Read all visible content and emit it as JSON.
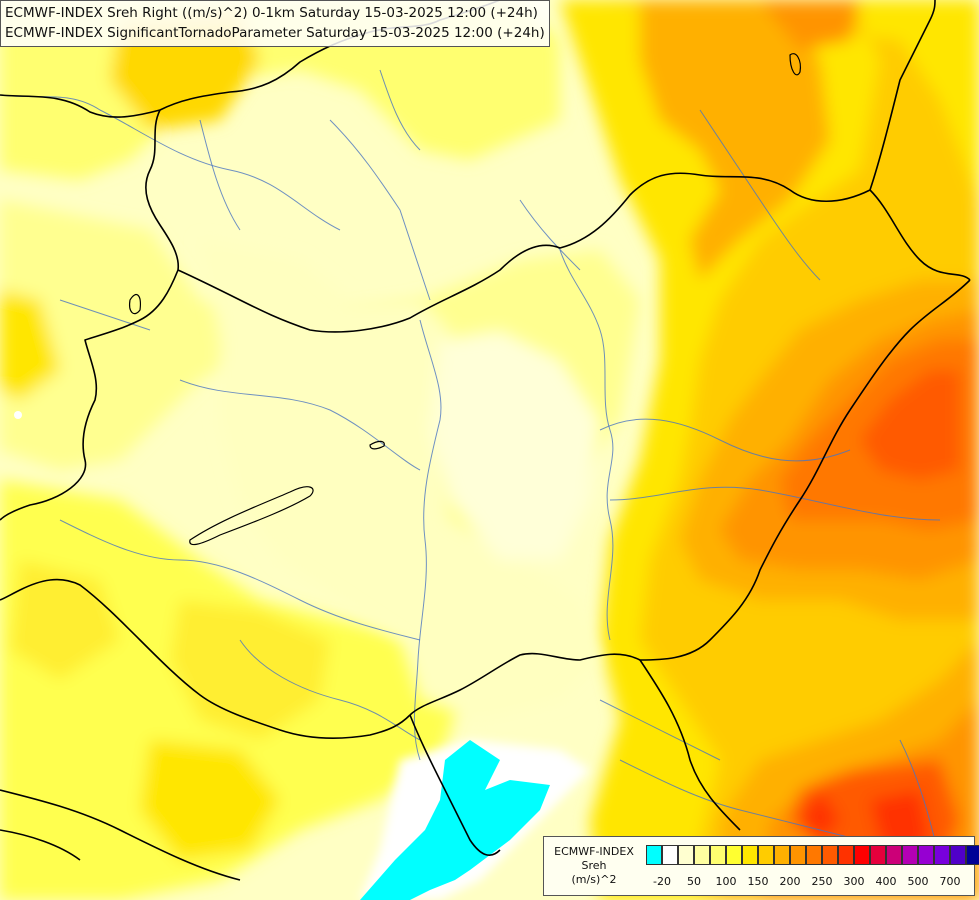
{
  "title": {
    "line1": "ECMWF-INDEX Sreh Right ((m/s)^2) 0-1km Saturday 15-03-2025 12:00 (+24h)",
    "line2": "ECMWF-INDEX SignificantTornadoParameter Saturday 15-03-2025 12:00 (+24h)"
  },
  "legend": {
    "source": "ECMWF-INDEX",
    "variable": "Sreh",
    "unit": "(m/s)^2",
    "colors": [
      "#00ffff",
      "#ffffff",
      "#ffffd0",
      "#ffffa0",
      "#ffff70",
      "#ffff30",
      "#ffe600",
      "#ffcc00",
      "#ffb000",
      "#ff9400",
      "#ff7800",
      "#ff5a00",
      "#ff3200",
      "#ff0000",
      "#e6003c",
      "#cc0078",
      "#b400b4",
      "#9600d2",
      "#7800dc",
      "#5000c8",
      "#000096"
    ],
    "ticks": [
      "-20",
      "50",
      "100",
      "150",
      "200",
      "250",
      "300",
      "400",
      "500",
      "700"
    ]
  }
}
